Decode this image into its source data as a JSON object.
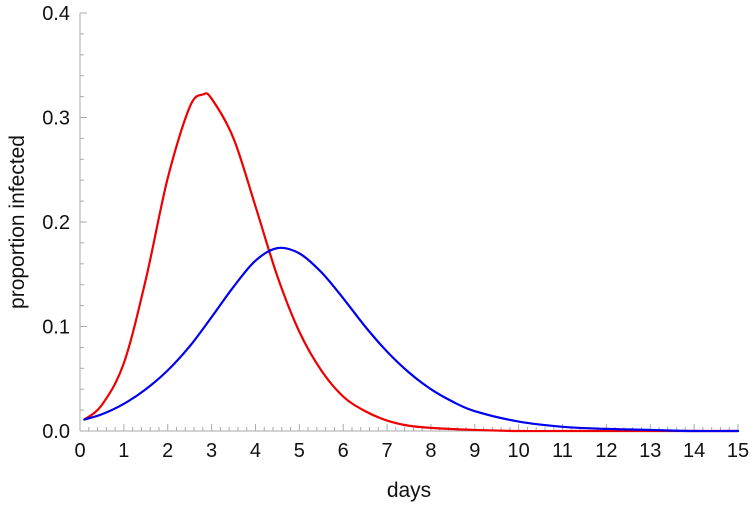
{
  "chart_data": {
    "type": "line",
    "title": "",
    "xlabel": "days",
    "ylabel": "proportion infected",
    "xlim": [
      0,
      15
    ],
    "ylim": [
      0,
      0.4
    ],
    "x_ticks": [
      0,
      1,
      2,
      3,
      4,
      5,
      6,
      7,
      8,
      9,
      10,
      11,
      12,
      13,
      14,
      15
    ],
    "y_ticks": [
      0.0,
      0.1,
      0.2,
      0.3,
      0.4
    ],
    "y_tick_labels": [
      "0.0",
      "0.1",
      "0.2",
      "0.3",
      "0.4"
    ],
    "grid": false,
    "legend": "none",
    "series": [
      {
        "color": "#ee0000",
        "points": [
          [
            0.1,
            0.011
          ],
          [
            0.5,
            0.025
          ],
          [
            1.0,
            0.065
          ],
          [
            1.5,
            0.145
          ],
          [
            2.0,
            0.242
          ],
          [
            2.5,
            0.31
          ],
          [
            2.8,
            0.322
          ],
          [
            3.0,
            0.318
          ],
          [
            3.5,
            0.28
          ],
          [
            4.0,
            0.215
          ],
          [
            4.5,
            0.148
          ],
          [
            5.0,
            0.095
          ],
          [
            5.5,
            0.058
          ],
          [
            6.0,
            0.033
          ],
          [
            6.5,
            0.019
          ],
          [
            7.0,
            0.01
          ],
          [
            7.5,
            0.005
          ],
          [
            8.0,
            0.003
          ],
          [
            9.0,
            0.001
          ],
          [
            10.0,
            0.0
          ],
          [
            11.0,
            0.0
          ],
          [
            12.0,
            0.0
          ],
          [
            13.0,
            0.0
          ],
          [
            14.0,
            0.0
          ],
          [
            15.0,
            0.0
          ]
        ]
      },
      {
        "color": "#0000ee",
        "points": [
          [
            0.1,
            0.011
          ],
          [
            0.5,
            0.016
          ],
          [
            1.0,
            0.026
          ],
          [
            1.5,
            0.04
          ],
          [
            2.0,
            0.058
          ],
          [
            2.5,
            0.081
          ],
          [
            3.0,
            0.109
          ],
          [
            3.5,
            0.138
          ],
          [
            4.0,
            0.163
          ],
          [
            4.5,
            0.175
          ],
          [
            5.0,
            0.17
          ],
          [
            5.5,
            0.152
          ],
          [
            6.0,
            0.127
          ],
          [
            6.5,
            0.1
          ],
          [
            7.0,
            0.076
          ],
          [
            7.5,
            0.056
          ],
          [
            8.0,
            0.04
          ],
          [
            8.5,
            0.028
          ],
          [
            9.0,
            0.019
          ],
          [
            10.0,
            0.009
          ],
          [
            11.0,
            0.004
          ],
          [
            12.0,
            0.002
          ],
          [
            13.0,
            0.001
          ],
          [
            14.0,
            0.0
          ],
          [
            15.0,
            0.0
          ]
        ]
      }
    ]
  }
}
